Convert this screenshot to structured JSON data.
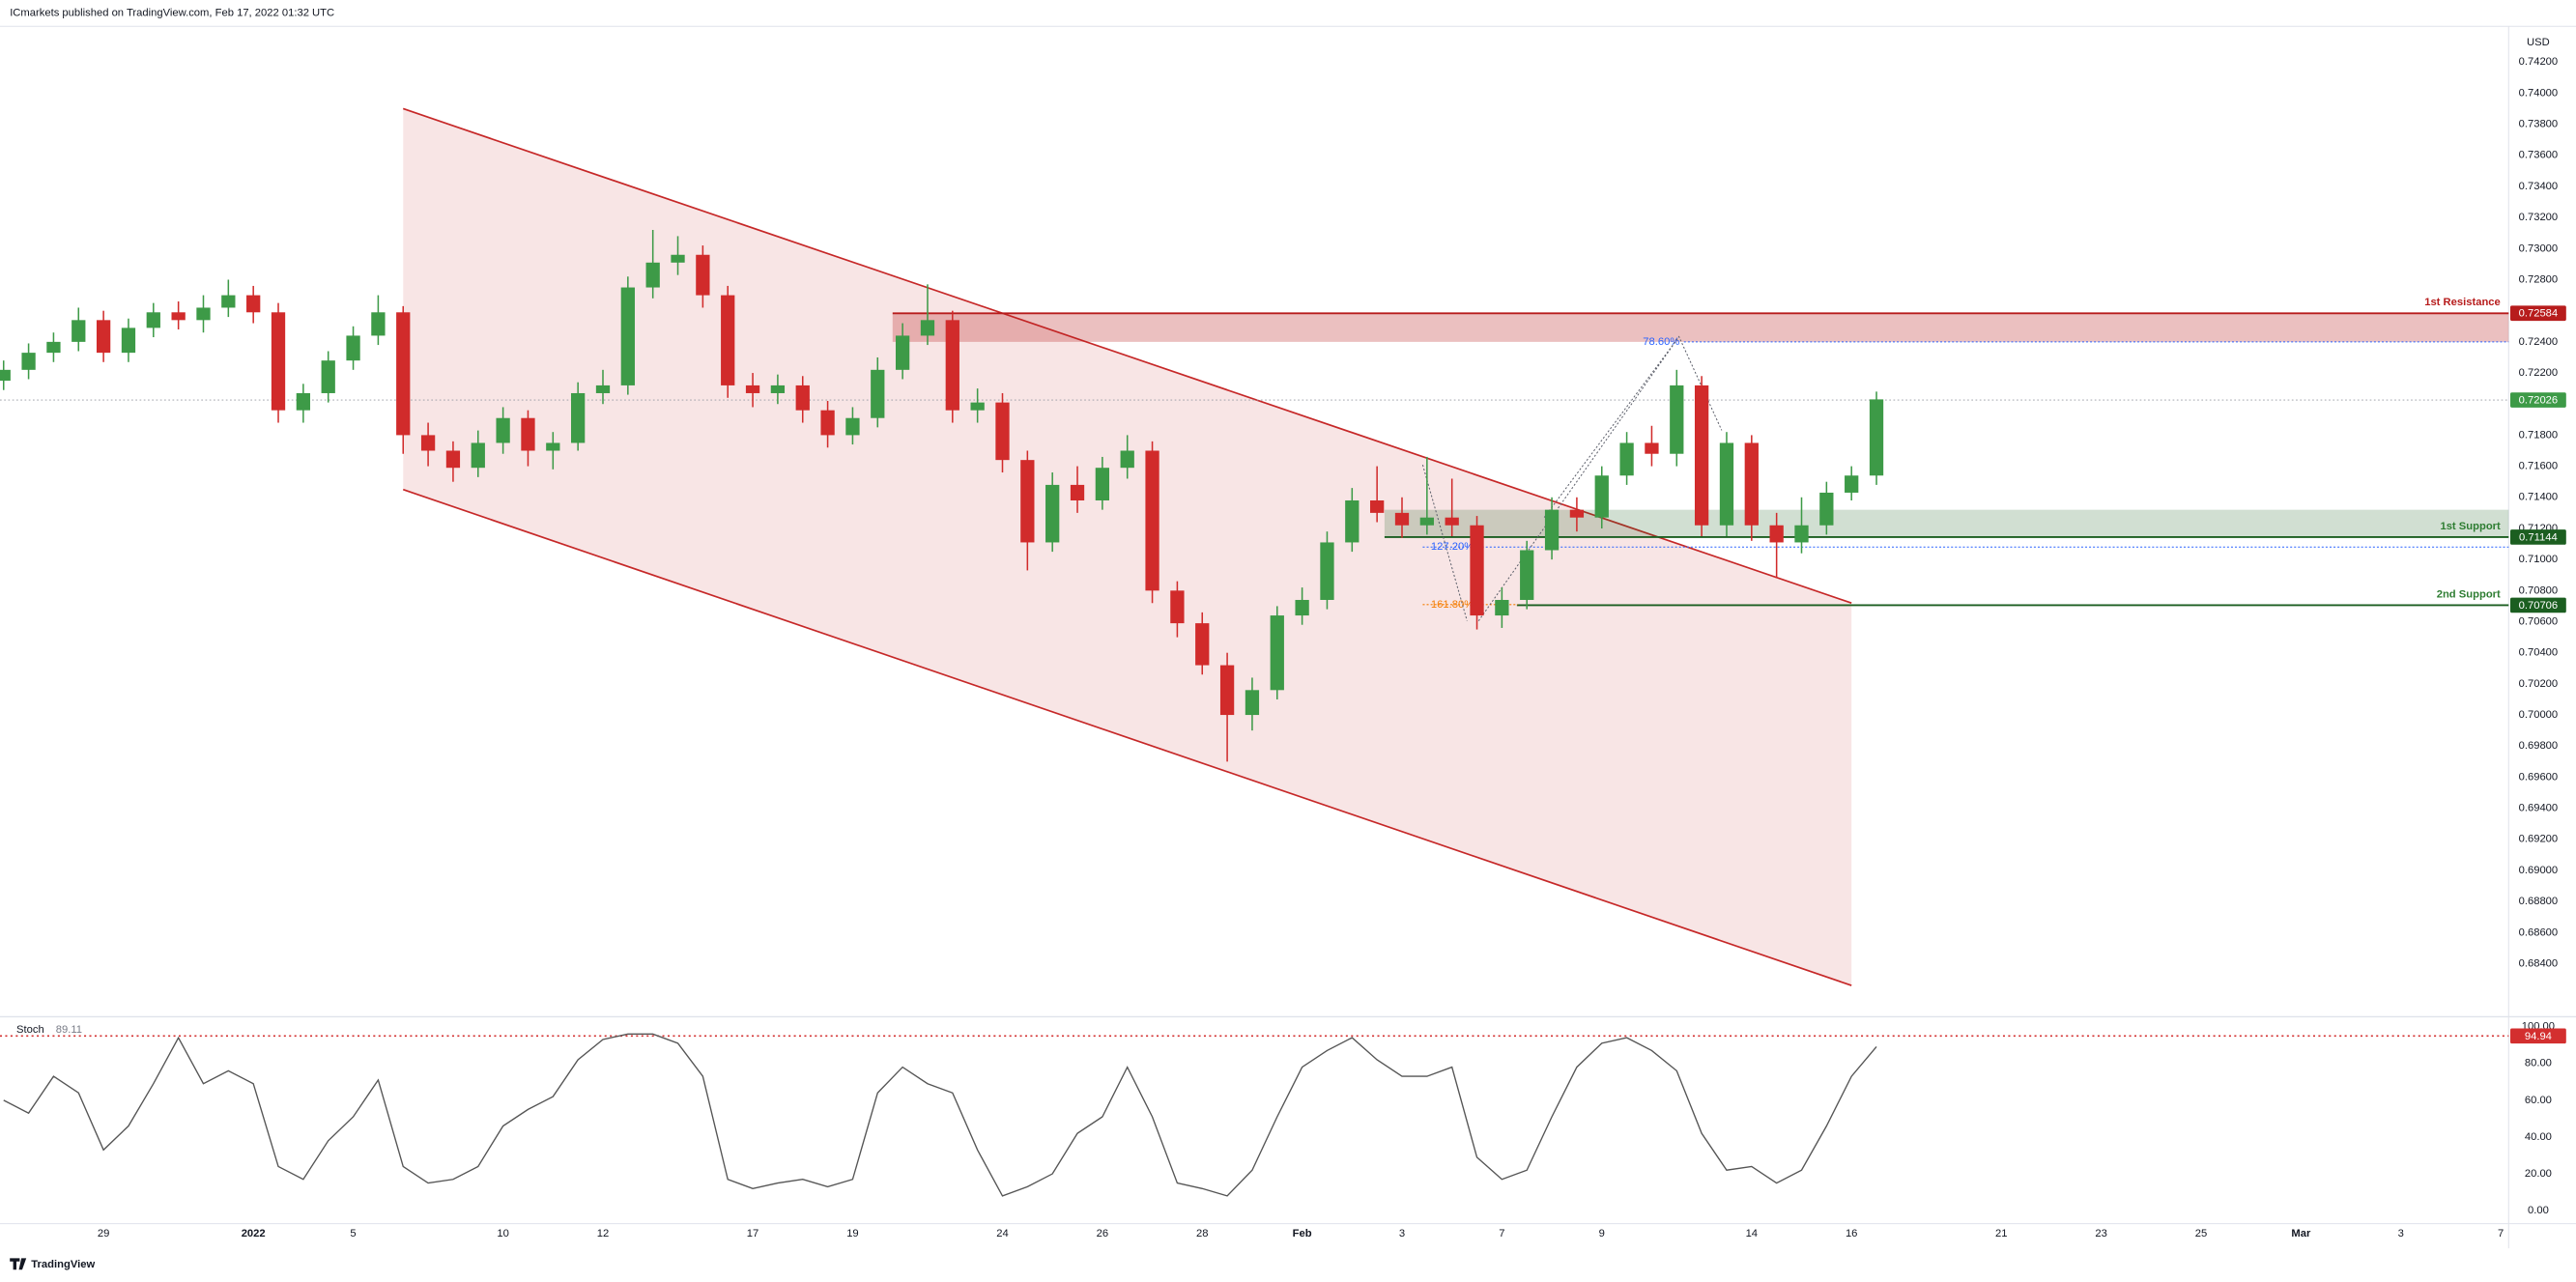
{
  "header": {
    "text": "ICmarkets published on TradingView.com, Feb 17, 2022 01:32 UTC"
  },
  "footer": {
    "brand": "TradingView"
  },
  "chart_data": {
    "type": "candlestick",
    "currency": "USD",
    "categories": [
      null,
      null,
      null,
      null,
      "29",
      null,
      null,
      null,
      null,
      null,
      "2022",
      null,
      null,
      null,
      "5",
      null,
      null,
      null,
      null,
      null,
      "10",
      null,
      null,
      null,
      "12",
      null,
      null,
      null,
      null,
      null,
      "17",
      null,
      null,
      null,
      "19",
      null,
      null,
      null,
      null,
      null,
      "24",
      null,
      null,
      null,
      "26",
      null,
      null,
      null,
      "28",
      null,
      null,
      null,
      "Feb",
      null,
      null,
      null,
      "3",
      null,
      null,
      null,
      "7",
      null,
      null,
      null,
      "9",
      null,
      null,
      null,
      null,
      null,
      "14",
      null,
      null,
      null,
      "16",
      null,
      null,
      null,
      null,
      null,
      "21",
      null,
      null,
      null,
      "23",
      null,
      null,
      null,
      "25",
      null,
      null,
      null,
      "Mar",
      null,
      null,
      null,
      "3",
      null,
      null,
      null,
      "7"
    ],
    "ohlc": [
      [
        0.7215,
        0.7228,
        0.7209,
        0.7222
      ],
      [
        0.7222,
        0.7239,
        0.7216,
        0.7233
      ],
      [
        0.7233,
        0.7246,
        0.7227,
        0.724
      ],
      [
        0.724,
        0.7262,
        0.7234,
        0.7254
      ],
      [
        0.7254,
        0.726,
        0.7227,
        0.7233
      ],
      [
        0.7233,
        0.7255,
        0.7227,
        0.7249
      ],
      [
        0.7249,
        0.7265,
        0.7243,
        0.7259
      ],
      [
        0.7259,
        0.7266,
        0.7248,
        0.7254
      ],
      [
        0.7254,
        0.727,
        0.7246,
        0.7262
      ],
      [
        0.7262,
        0.728,
        0.7256,
        0.727
      ],
      [
        0.727,
        0.7276,
        0.7252,
        0.7259
      ],
      [
        0.7259,
        0.7265,
        0.7188,
        0.7196
      ],
      [
        0.7196,
        0.7213,
        0.7188,
        0.7207
      ],
      [
        0.7207,
        0.7234,
        0.7201,
        0.7228
      ],
      [
        0.7228,
        0.725,
        0.7222,
        0.7244
      ],
      [
        0.7244,
        0.727,
        0.7238,
        0.7259
      ],
      [
        0.7259,
        0.7263,
        0.7168,
        0.718
      ],
      [
        0.718,
        0.7188,
        0.716,
        0.717
      ],
      [
        0.717,
        0.7176,
        0.715,
        0.7159
      ],
      [
        0.7159,
        0.7183,
        0.7153,
        0.7175
      ],
      [
        0.7175,
        0.7198,
        0.7168,
        0.7191
      ],
      [
        0.7191,
        0.7196,
        0.716,
        0.717
      ],
      [
        0.717,
        0.7182,
        0.7158,
        0.7175
      ],
      [
        0.7175,
        0.7214,
        0.717,
        0.7207
      ],
      [
        0.7207,
        0.7222,
        0.72,
        0.7212
      ],
      [
        0.7212,
        0.7282,
        0.7206,
        0.7275
      ],
      [
        0.7275,
        0.7312,
        0.7268,
        0.7291
      ],
      [
        0.7291,
        0.7308,
        0.7283,
        0.7296
      ],
      [
        0.7296,
        0.7302,
        0.7262,
        0.727
      ],
      [
        0.727,
        0.7276,
        0.7204,
        0.7212
      ],
      [
        0.7212,
        0.722,
        0.7198,
        0.7207
      ],
      [
        0.7207,
        0.7219,
        0.72,
        0.7212
      ],
      [
        0.7212,
        0.7218,
        0.7188,
        0.7196
      ],
      [
        0.7196,
        0.7202,
        0.7172,
        0.718
      ],
      [
        0.718,
        0.7198,
        0.7174,
        0.7191
      ],
      [
        0.7191,
        0.723,
        0.7185,
        0.7222
      ],
      [
        0.7222,
        0.7252,
        0.7216,
        0.7244
      ],
      [
        0.7244,
        0.7277,
        0.7238,
        0.7254
      ],
      [
        0.7254,
        0.726,
        0.7188,
        0.7196
      ],
      [
        0.7196,
        0.721,
        0.7188,
        0.7201
      ],
      [
        0.7201,
        0.7207,
        0.7156,
        0.7164
      ],
      [
        0.7164,
        0.717,
        0.7093,
        0.7111
      ],
      [
        0.7111,
        0.7156,
        0.7105,
        0.7148
      ],
      [
        0.7148,
        0.716,
        0.713,
        0.7138
      ],
      [
        0.7138,
        0.7166,
        0.7132,
        0.7159
      ],
      [
        0.7159,
        0.718,
        0.7152,
        0.717
      ],
      [
        0.717,
        0.7176,
        0.7072,
        0.708
      ],
      [
        0.708,
        0.7086,
        0.705,
        0.7059
      ],
      [
        0.7059,
        0.7066,
        0.7026,
        0.7032
      ],
      [
        0.7032,
        0.704,
        0.697,
        0.7
      ],
      [
        0.7,
        0.7024,
        0.699,
        0.7016
      ],
      [
        0.7016,
        0.707,
        0.701,
        0.7064
      ],
      [
        0.7064,
        0.7082,
        0.7058,
        0.7074
      ],
      [
        0.7074,
        0.7118,
        0.7068,
        0.7111
      ],
      [
        0.7111,
        0.7146,
        0.7105,
        0.7138
      ],
      [
        0.7138,
        0.716,
        0.7124,
        0.713
      ],
      [
        0.713,
        0.714,
        0.7114,
        0.7122
      ],
      [
        0.7122,
        0.7166,
        0.7116,
        0.7127
      ],
      [
        0.7127,
        0.7152,
        0.7115,
        0.7122
      ],
      [
        0.7122,
        0.7128,
        0.7055,
        0.7064
      ],
      [
        0.7064,
        0.7082,
        0.7056,
        0.7074
      ],
      [
        0.7074,
        0.7112,
        0.7068,
        0.7106
      ],
      [
        0.7106,
        0.714,
        0.71,
        0.7132
      ],
      [
        0.7132,
        0.714,
        0.7118,
        0.7127
      ],
      [
        0.7127,
        0.716,
        0.712,
        0.7154
      ],
      [
        0.7154,
        0.7182,
        0.7148,
        0.7175
      ],
      [
        0.7175,
        0.7186,
        0.716,
        0.7168
      ],
      [
        0.7168,
        0.7222,
        0.716,
        0.7212
      ],
      [
        0.7212,
        0.7218,
        0.7115,
        0.7122
      ],
      [
        0.7122,
        0.7182,
        0.7115,
        0.7175
      ],
      [
        0.7175,
        0.718,
        0.7112,
        0.7122
      ],
      [
        0.7122,
        0.713,
        0.7088,
        0.7111
      ],
      [
        0.7111,
        0.714,
        0.7104,
        0.7122
      ],
      [
        0.7122,
        0.715,
        0.7116,
        0.7143
      ],
      [
        0.7143,
        0.716,
        0.7138,
        0.7154
      ],
      [
        0.7154,
        0.7208,
        0.7148,
        0.7203
      ],
      null,
      null,
      null,
      null,
      null,
      null,
      null,
      null,
      null,
      null,
      null,
      null,
      null,
      null,
      null,
      null,
      null,
      null,
      null,
      null,
      null,
      null,
      null,
      null,
      null
    ],
    "up_color": "#3d9a47",
    "down_color": "#d12b2b",
    "ylim": [
      0.6808,
      0.7443
    ],
    "yticks": [
      {
        "value": 0.684,
        "label": "0.68400"
      },
      {
        "value": 0.686,
        "label": "0.68600"
      },
      {
        "value": 0.688,
        "label": "0.68800"
      },
      {
        "value": 0.69,
        "label": "0.69000"
      },
      {
        "value": 0.692,
        "label": "0.69200"
      },
      {
        "value": 0.694,
        "label": "0.69400"
      },
      {
        "value": 0.696,
        "label": "0.69600"
      },
      {
        "value": 0.698,
        "label": "0.69800"
      },
      {
        "value": 0.7,
        "label": "0.70000"
      },
      {
        "value": 0.702,
        "label": "0.70200"
      },
      {
        "value": 0.704,
        "label": "0.70400"
      },
      {
        "value": 0.706,
        "label": "0.70600"
      },
      {
        "value": 0.708,
        "label": "0.70800"
      },
      {
        "value": 0.71,
        "label": "0.71000"
      },
      {
        "value": 0.712,
        "label": "0.71200"
      },
      {
        "value": 0.714,
        "label": "0.71400"
      },
      {
        "value": 0.716,
        "label": "0.71600"
      },
      {
        "value": 0.718,
        "label": "0.71800"
      },
      {
        "value": 0.72,
        "label": "0.72000"
      },
      {
        "value": 0.722,
        "label": "0.72200"
      },
      {
        "value": 0.724,
        "label": "0.72400"
      },
      {
        "value": 0.726,
        "label": "0.72600"
      },
      {
        "value": 0.728,
        "label": "0.72800"
      },
      {
        "value": 0.73,
        "label": "0.73000"
      },
      {
        "value": 0.732,
        "label": "0.73200"
      },
      {
        "value": 0.734,
        "label": "0.73400"
      },
      {
        "value": 0.736,
        "label": "0.73600"
      },
      {
        "value": 0.738,
        "label": "0.73800"
      },
      {
        "value": 0.74,
        "label": "0.74000"
      },
      {
        "value": 0.742,
        "label": "0.74200"
      }
    ],
    "last_price": 0.72026,
    "channel": {
      "upper": [
        0.739,
        0.7072
      ],
      "lower": [
        0.7145,
        0.6826
      ],
      "color": "#c62828"
    },
    "levels": [
      {
        "name": "1st Resistance",
        "price": 0.72584,
        "zone_to": 0.724,
        "color": "#b71c1c"
      },
      {
        "name": "1st Support",
        "price": 0.71144,
        "zone_to": 0.7132,
        "color": "#1b5e20"
      },
      {
        "name": "2nd Support",
        "price": 0.70706,
        "color": "#1b5e20"
      }
    ],
    "fib": [
      {
        "label": "78.60%",
        "price": 0.724,
        "color": "#2962ff"
      },
      {
        "label": "127.20%",
        "price": 0.7108,
        "color": "#2962ff"
      },
      {
        "label": "161.80%",
        "price": 0.7071,
        "color": "#f57c00"
      }
    ],
    "indicator": {
      "type": "line",
      "name": "Stoch",
      "color": "#555555",
      "values": [
        60,
        53,
        73,
        64,
        33,
        46,
        69,
        94,
        69,
        76,
        69,
        24,
        17,
        38,
        51,
        71,
        24,
        15,
        17,
        24,
        46,
        55,
        62,
        82,
        93,
        96,
        96,
        91,
        73,
        17,
        12,
        15,
        17,
        13,
        17,
        64,
        78,
        69,
        64,
        33,
        8,
        13,
        20,
        42,
        51,
        78,
        51,
        15,
        12,
        8,
        22,
        51,
        78,
        87,
        94,
        82,
        73,
        73,
        78,
        29,
        17,
        22,
        51,
        78,
        91,
        94,
        87,
        76,
        42,
        22,
        24,
        15,
        22,
        46,
        73,
        89.11,
        null,
        null,
        null,
        null,
        null,
        null,
        null,
        null,
        null,
        null,
        null,
        null,
        null,
        null,
        null,
        null,
        null,
        null,
        null,
        null,
        null,
        null,
        null,
        null,
        null
      ],
      "level": 94.94,
      "level_color": "#d32f2f",
      "ylim": [
        -7.1,
        104.5
      ],
      "yticks": [
        {
          "value": 0,
          "label": "0.00"
        },
        {
          "value": 20,
          "label": "20.00"
        },
        {
          "value": 40,
          "label": "40.00"
        },
        {
          "value": 60,
          "label": "60.00"
        },
        {
          "value": 80,
          "label": "80.00"
        },
        {
          "value": 100,
          "label": "100.00"
        }
      ]
    }
  }
}
